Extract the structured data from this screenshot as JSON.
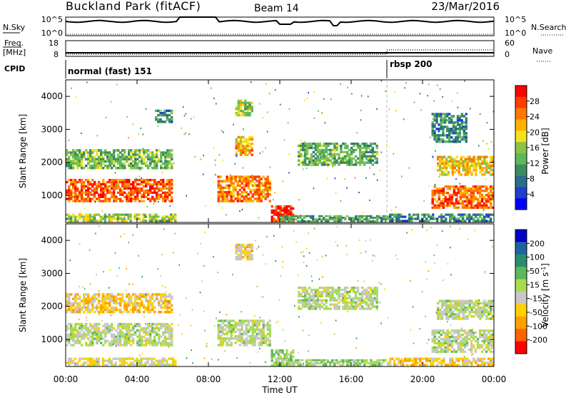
{
  "header": {
    "title": "Buckland Park (fitACF)",
    "beam": "Beam 14",
    "date": "23/Mar/2016"
  },
  "top_panels": {
    "nsky_label": "N.Sky",
    "nsky_ticks": [
      "10^5",
      "10^0"
    ],
    "nsearch_label": "N.Search",
    "nsearch_ticks": [
      "10^5",
      "10^0"
    ],
    "freq_label": "Freq.",
    "freq_unit": "[MHz]",
    "freq_ticks": [
      "18",
      "8"
    ],
    "nave_label": "Nave",
    "nave_ticks": [
      "60",
      "0"
    ],
    "cpid_label": "CPID",
    "cpid_modes": [
      {
        "label": "normal (fast) 151",
        "start_hour": 0
      },
      {
        "label": "rbsp 200",
        "start_hour": 18
      }
    ]
  },
  "chart_data": [
    {
      "type": "heatmap",
      "quantity": "Power",
      "ylabel": "Slant Range [km]",
      "xlabel": "",
      "ylim": [
        180,
        4500
      ],
      "yticks": [
        "1000",
        "2000",
        "3000",
        "4000"
      ],
      "xticks": [
        "00:00",
        "04:00",
        "08:00",
        "12:00",
        "16:00",
        "20:00",
        "00:00"
      ],
      "xlim_hours": [
        0,
        24
      ],
      "colorbar": {
        "label": "Power [dB]",
        "ticks": [
          "4",
          "8",
          "12",
          "16",
          "20",
          "24",
          "28"
        ],
        "range": [
          0,
          30
        ],
        "colors": [
          "#0000ff",
          "#2040c8",
          "#2a6e8c",
          "#3c8c60",
          "#5cb85c",
          "#8bc34a",
          "#f5e11e",
          "#ffb000",
          "#ff7800",
          "#ff3c00",
          "#ff0000"
        ]
      },
      "features": [
        {
          "t0": 0.0,
          "t1": 6.0,
          "r0": 800,
          "r1": 1500,
          "value": 25
        },
        {
          "t0": 0.0,
          "t1": 6.0,
          "r0": 1800,
          "r1": 2400,
          "value": 13
        },
        {
          "t0": 0.0,
          "t1": 6.2,
          "r0": 200,
          "r1": 450,
          "value": 15
        },
        {
          "t0": 5.0,
          "t1": 6.0,
          "r0": 3200,
          "r1": 3600,
          "value": 9
        },
        {
          "t0": 8.5,
          "t1": 11.5,
          "r0": 800,
          "r1": 1600,
          "value": 23
        },
        {
          "t0": 9.5,
          "t1": 10.5,
          "r0": 2200,
          "r1": 2800,
          "value": 20
        },
        {
          "t0": 9.5,
          "t1": 10.5,
          "r0": 3400,
          "r1": 3900,
          "value": 15
        },
        {
          "t0": 11.5,
          "t1": 12.8,
          "r0": 200,
          "r1": 700,
          "value": 28
        },
        {
          "t0": 12.0,
          "t1": 18.0,
          "r0": 200,
          "r1": 400,
          "value": 11
        },
        {
          "t0": 13.0,
          "t1": 17.5,
          "r0": 1900,
          "r1": 2600,
          "value": 12
        },
        {
          "t0": 18.0,
          "t1": 24.0,
          "r0": 200,
          "r1": 450,
          "value": 8
        },
        {
          "t0": 20.5,
          "t1": 24.0,
          "r0": 600,
          "r1": 1300,
          "value": 24
        },
        {
          "t0": 20.8,
          "t1": 24.0,
          "r0": 1600,
          "r1": 2200,
          "value": 19
        },
        {
          "t0": 20.5,
          "t1": 22.5,
          "r0": 2600,
          "r1": 3500,
          "value": 9
        }
      ]
    },
    {
      "type": "heatmap",
      "quantity": "Velocity",
      "ylabel": "Slant Range [km]",
      "xlabel": "Time UT",
      "ylim": [
        180,
        4500
      ],
      "yticks": [
        "1000",
        "2000",
        "3000",
        "4000"
      ],
      "xticks": [
        "00:00",
        "04:00",
        "08:00",
        "12:00",
        "16:00",
        "20:00",
        "00:00"
      ],
      "xlim_hours": [
        0,
        24
      ],
      "colorbar": {
        "label": "Velocity [m s^-1]",
        "ticks": [
          "200",
          "100",
          "50",
          "15",
          "-15",
          "-50",
          "-100",
          "-200"
        ],
        "range": [
          -250,
          250
        ],
        "colors": [
          "#0000c8",
          "#1e64a0",
          "#2a8c6e",
          "#5cb85c",
          "#a8dc50",
          "#c8c8c8",
          "#ffd200",
          "#ffa000",
          "#ff6400",
          "#ff0000"
        ]
      },
      "features": [
        {
          "t0": 0.0,
          "t1": 6.0,
          "r0": 800,
          "r1": 1500,
          "value": 0
        },
        {
          "t0": 0.0,
          "t1": 6.0,
          "r0": 1800,
          "r1": 2400,
          "value": -80
        },
        {
          "t0": 0.0,
          "t1": 6.2,
          "r0": 200,
          "r1": 450,
          "value": -40
        },
        {
          "t0": 8.5,
          "t1": 11.5,
          "r0": 800,
          "r1": 1600,
          "value": 0
        },
        {
          "t0": 9.5,
          "t1": 10.5,
          "r0": 3400,
          "r1": 3900,
          "value": -60
        },
        {
          "t0": 11.5,
          "t1": 12.8,
          "r0": 200,
          "r1": 700,
          "value": 40
        },
        {
          "t0": 12.0,
          "t1": 18.0,
          "r0": 200,
          "r1": 400,
          "value": 30
        },
        {
          "t0": 13.0,
          "t1": 17.5,
          "r0": 1900,
          "r1": 2600,
          "value": 0
        },
        {
          "t0": 18.0,
          "t1": 24.0,
          "r0": 200,
          "r1": 450,
          "value": -70
        },
        {
          "t0": 20.5,
          "t1": 24.0,
          "r0": 600,
          "r1": 1300,
          "value": 0
        },
        {
          "t0": 20.8,
          "t1": 24.0,
          "r0": 1600,
          "r1": 2200,
          "value": 0
        }
      ]
    }
  ],
  "xaxis_title": "Time UT"
}
